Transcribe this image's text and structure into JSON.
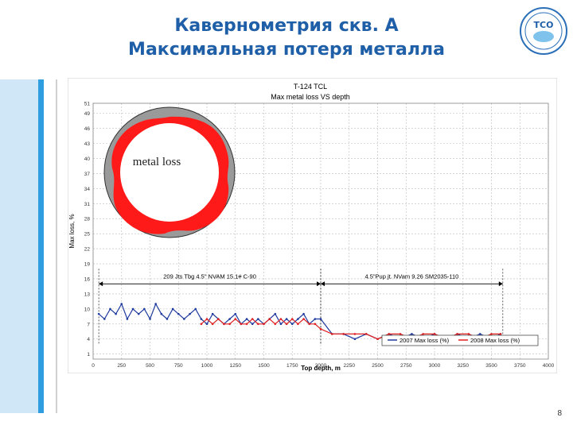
{
  "slide": {
    "title_line1": "Кавернометрия скв. А",
    "title_line2": "Максимальная потеря металла",
    "page_number": "8"
  },
  "logo": {
    "icon": "company-logo-icon",
    "text": "ТСО"
  },
  "colors": {
    "title": "#1f5fa8",
    "accent_stripe": "#2f9ee0",
    "side_panel": "#cfe7f7",
    "series_2007": "#1f3a9e",
    "series_2008": "#e02020",
    "ring_outer": "#9a9a9a",
    "ring_loss": "#ff1a1a"
  },
  "chart_data": {
    "type": "line",
    "title_line1": "T-124 TCL",
    "title_line2": "Max metal loss VS depth",
    "xlabel": "Top depth, m",
    "ylabel": "Max loss, %",
    "xlim": [
      0,
      4000
    ],
    "ylim": [
      0,
      51
    ],
    "x_ticks": [
      0,
      250,
      500,
      750,
      1000,
      1250,
      1500,
      1750,
      2000,
      2250,
      2500,
      2750,
      3000,
      3250,
      3500,
      3750,
      4000
    ],
    "y_ticks": [
      1,
      4,
      7,
      10,
      13,
      16,
      19,
      22,
      25,
      28,
      31,
      34,
      37,
      40,
      43,
      46,
      49,
      51
    ],
    "grid": true,
    "legend_position": "bottom-right",
    "inset_label": "metal loss",
    "annotations": [
      {
        "text": "209 Jts Tbg 4.5\" NVAM 15.1# C-90",
        "x_from": 50,
        "x_to": 2000
      },
      {
        "text": "4.5\"Pup jt. NVam 9.26 SM2035-110",
        "x_from": 2000,
        "x_to": 3600
      }
    ],
    "series": [
      {
        "name": "2007 Max loss (%)",
        "x": [
          50,
          100,
          150,
          200,
          250,
          300,
          350,
          400,
          450,
          500,
          550,
          600,
          650,
          700,
          750,
          800,
          850,
          900,
          950,
          1000,
          1050,
          1100,
          1150,
          1200,
          1250,
          1300,
          1350,
          1400,
          1450,
          1500,
          1550,
          1600,
          1650,
          1700,
          1750,
          1800,
          1850,
          1900,
          1950,
          2000,
          2100,
          2200,
          2300,
          2400,
          2500,
          2600,
          2700,
          2800,
          2900,
          3000,
          3100,
          3200,
          3300,
          3400,
          3500,
          3580
        ],
        "y": [
          9,
          8,
          10,
          9,
          11,
          8,
          10,
          9,
          10,
          8,
          11,
          9,
          8,
          10,
          9,
          8,
          9,
          10,
          8,
          7,
          9,
          8,
          7,
          8,
          9,
          7,
          8,
          7,
          8,
          7,
          8,
          9,
          7,
          8,
          7,
          8,
          9,
          7,
          8,
          8,
          5,
          5,
          4,
          5,
          4,
          5,
          4,
          5,
          4,
          5,
          4,
          5,
          4,
          5,
          4,
          5
        ]
      },
      {
        "name": "2008 Max loss (%)",
        "x": [
          950,
          1000,
          1050,
          1100,
          1150,
          1200,
          1250,
          1300,
          1350,
          1400,
          1450,
          1500,
          1550,
          1600,
          1650,
          1700,
          1750,
          1800,
          1850,
          1900,
          1950,
          2000,
          2100,
          2200,
          2300,
          2400,
          2500,
          2600,
          2700,
          2800,
          2900,
          3000,
          3100,
          3200,
          3300,
          3400,
          3500,
          3580
        ],
        "y": [
          7,
          8,
          7,
          8,
          7,
          7,
          8,
          7,
          7,
          8,
          7,
          7,
          8,
          7,
          8,
          7,
          8,
          7,
          8,
          7,
          7,
          6,
          5,
          5,
          5,
          5,
          4,
          5,
          5,
          4,
          5,
          5,
          4,
          5,
          5,
          4,
          5,
          5
        ]
      }
    ]
  }
}
